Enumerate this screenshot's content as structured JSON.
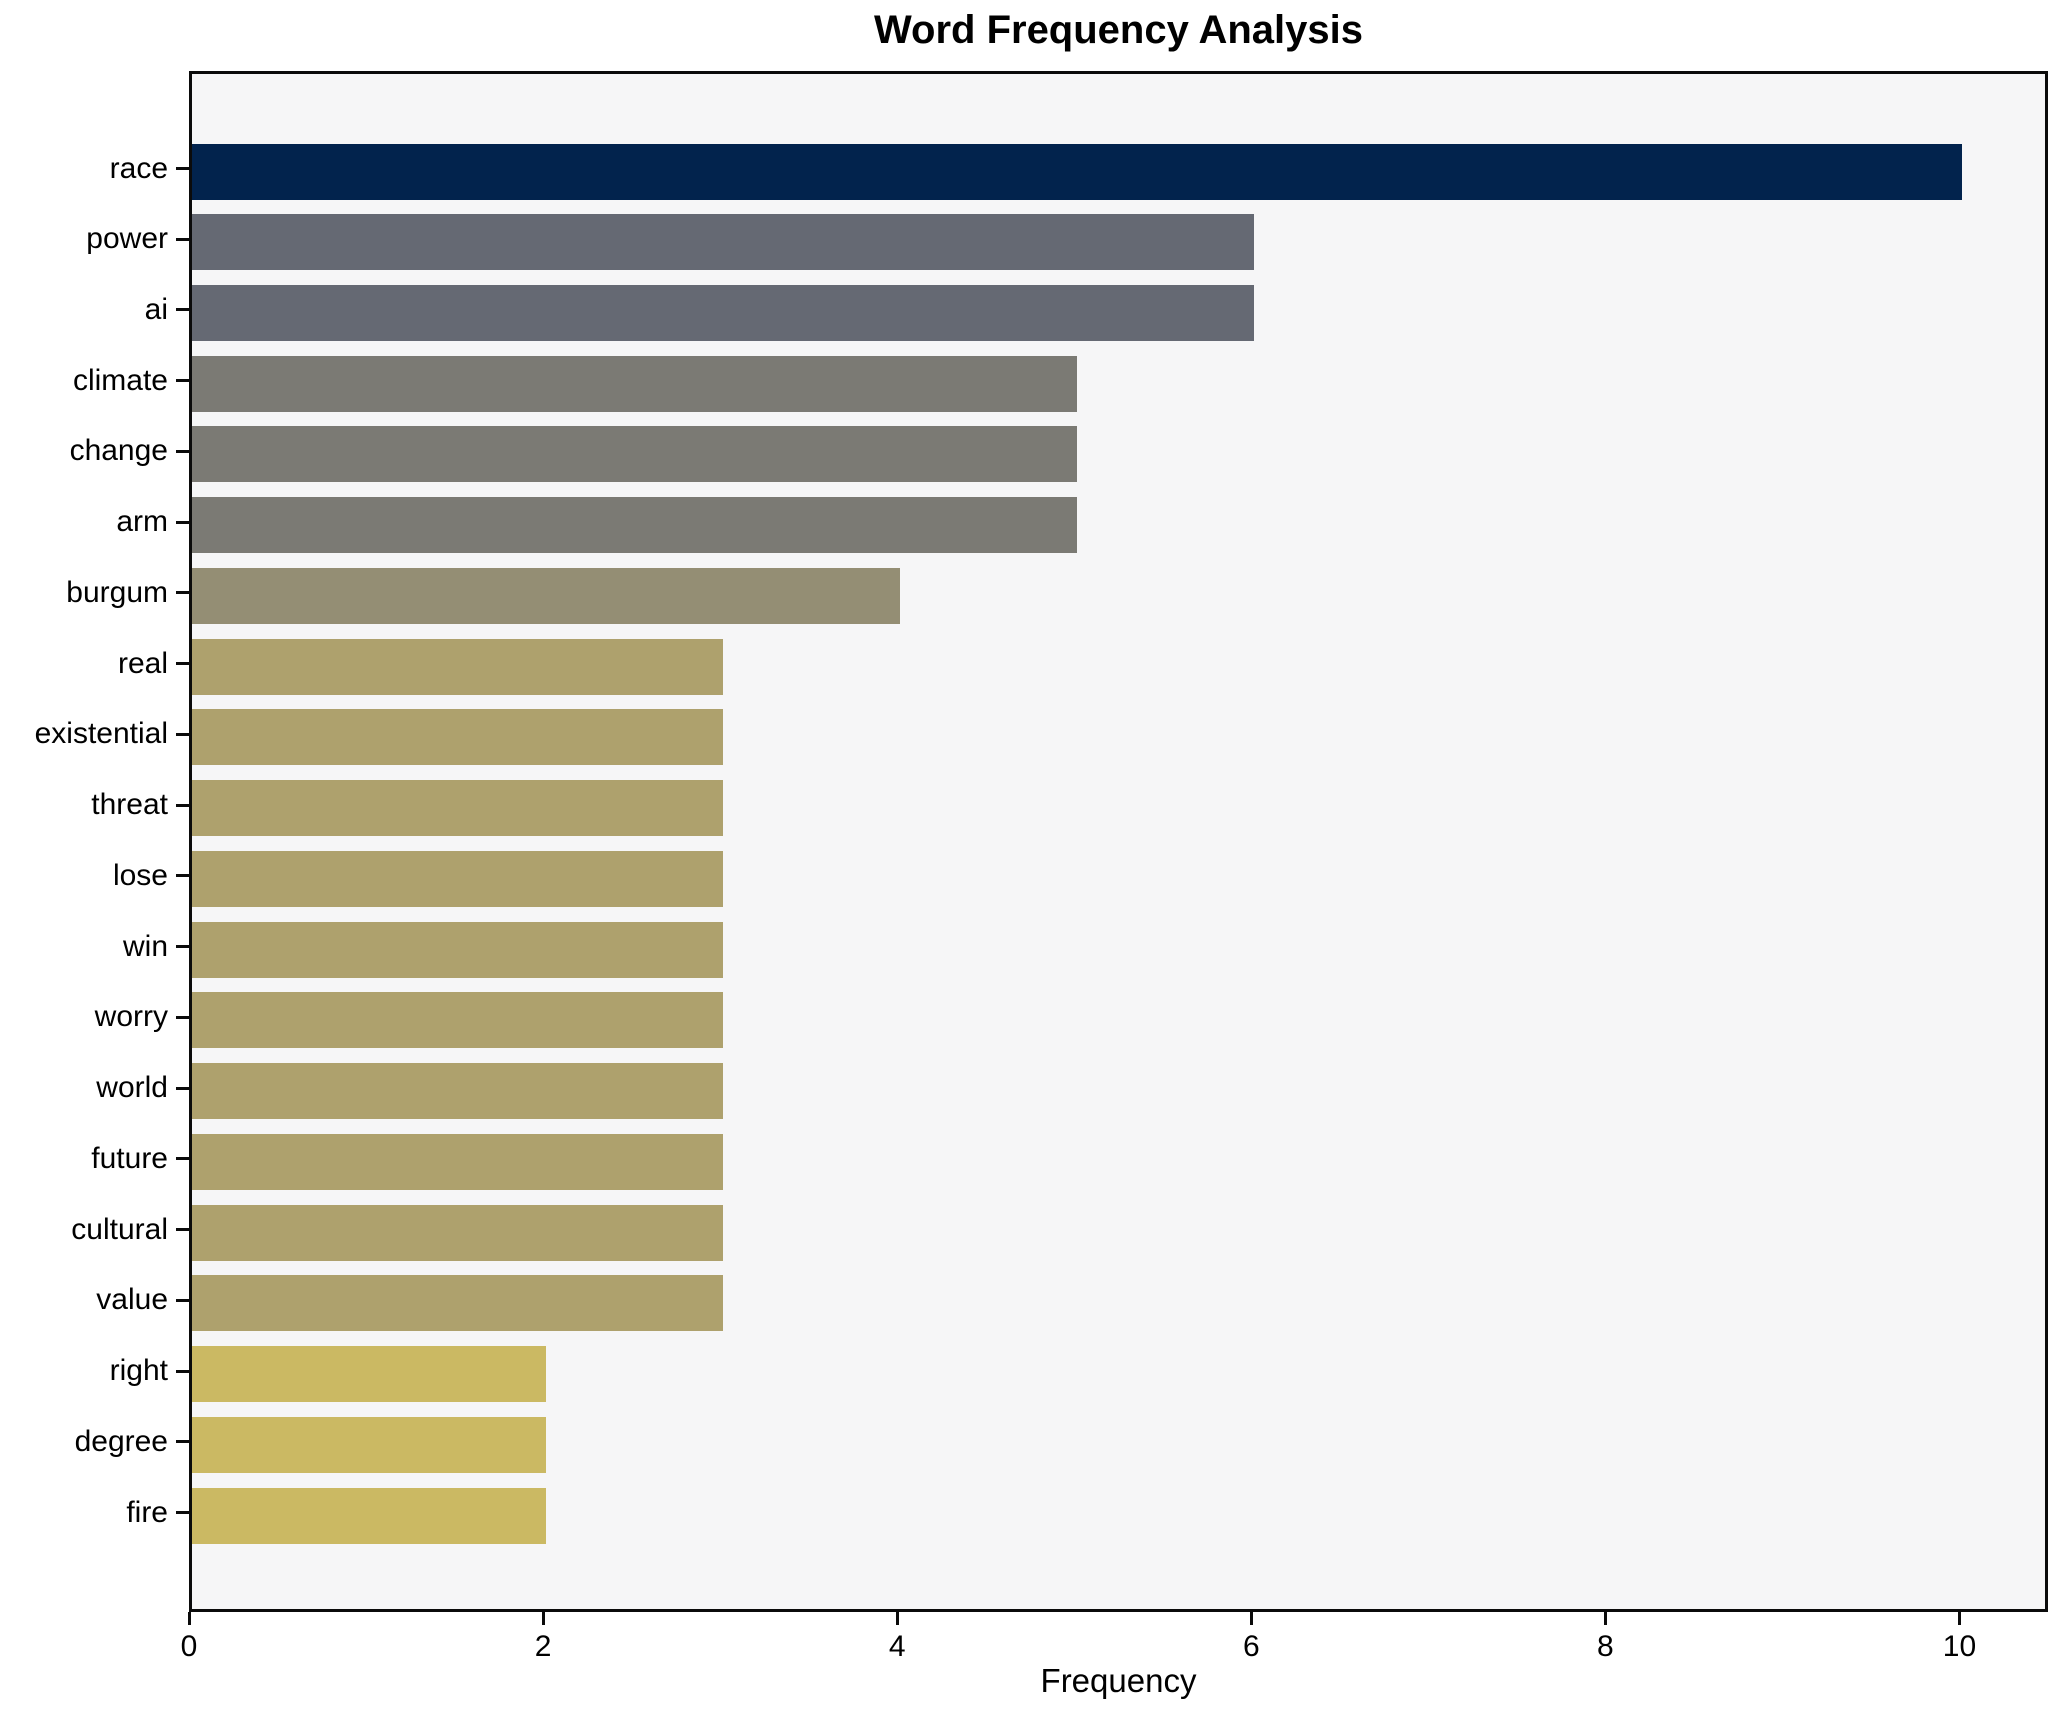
{
  "chart_data": {
    "type": "bar",
    "orientation": "horizontal",
    "title": "Word Frequency Analysis",
    "xlabel": "Frequency",
    "ylabel": "",
    "xlim": [
      0,
      10.5
    ],
    "xticks": [
      0,
      2,
      4,
      6,
      8,
      10
    ],
    "grid": false,
    "legend": "none",
    "plot_background": "#f6f6f7",
    "axis_color": "#0b0b0b",
    "categories": [
      "race",
      "power",
      "ai",
      "climate",
      "change",
      "arm",
      "burgum",
      "real",
      "existential",
      "threat",
      "lose",
      "win",
      "worry",
      "world",
      "future",
      "cultural",
      "value",
      "right",
      "degree",
      "fire"
    ],
    "values": [
      10,
      6,
      6,
      5,
      5,
      5,
      4,
      3,
      3,
      3,
      3,
      3,
      3,
      3,
      3,
      3,
      3,
      2,
      2,
      2
    ],
    "bar_colors": [
      "#02234d",
      "#656973",
      "#656973",
      "#7b7a74",
      "#7b7a74",
      "#7b7a74",
      "#948e74",
      "#aea16d",
      "#aea16d",
      "#aea16d",
      "#aea16d",
      "#aea16d",
      "#aea16d",
      "#aea16d",
      "#aea16d",
      "#aea16d",
      "#aea16d",
      "#cbb963",
      "#cbb963",
      "#cbb963"
    ]
  }
}
